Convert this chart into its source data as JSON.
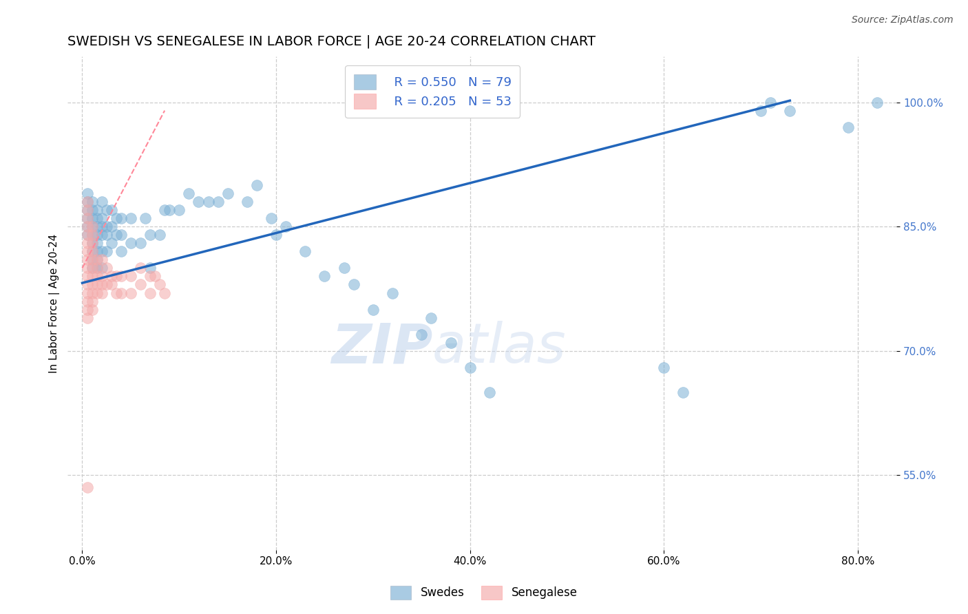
{
  "title": "SWEDISH VS SENEGALESE IN LABOR FORCE | AGE 20-24 CORRELATION CHART",
  "source": "Source: ZipAtlas.com",
  "ylabel": "In Labor Force | Age 20-24",
  "xlabel_ticks": [
    "0.0%",
    "20.0%",
    "40.0%",
    "60.0%",
    "80.0%"
  ],
  "xlabel_vals": [
    0.0,
    0.2,
    0.4,
    0.6,
    0.8
  ],
  "ylabel_ticks": [
    "55.0%",
    "70.0%",
    "85.0%",
    "100.0%"
  ],
  "ylabel_vals": [
    0.55,
    0.7,
    0.85,
    1.0
  ],
  "ylim": [
    0.46,
    1.055
  ],
  "xlim": [
    -0.015,
    0.84
  ],
  "blue_color": "#7BAFD4",
  "pink_color": "#F4AAAA",
  "legend_blue_R": "R = 0.550",
  "legend_blue_N": "N = 79",
  "legend_pink_R": "R = 0.205",
  "legend_pink_N": "N = 53",
  "watermark_zip": "ZIP",
  "watermark_atlas": "atlas",
  "grid_color": "#CCCCCC",
  "title_fontsize": 14,
  "axis_label_fontsize": 11,
  "tick_fontsize": 11,
  "source_fontsize": 10,
  "legend_fontsize": 13,
  "blue_scatter_x": [
    0.005,
    0.005,
    0.005,
    0.005,
    0.005,
    0.005,
    0.01,
    0.01,
    0.01,
    0.01,
    0.01,
    0.01,
    0.01,
    0.01,
    0.01,
    0.015,
    0.015,
    0.015,
    0.015,
    0.015,
    0.015,
    0.015,
    0.015,
    0.02,
    0.02,
    0.02,
    0.02,
    0.02,
    0.02,
    0.025,
    0.025,
    0.025,
    0.025,
    0.03,
    0.03,
    0.03,
    0.035,
    0.035,
    0.04,
    0.04,
    0.04,
    0.05,
    0.05,
    0.06,
    0.065,
    0.07,
    0.07,
    0.08,
    0.085,
    0.09,
    0.1,
    0.11,
    0.12,
    0.13,
    0.14,
    0.15,
    0.17,
    0.18,
    0.195,
    0.2,
    0.21,
    0.23,
    0.25,
    0.27,
    0.28,
    0.3,
    0.32,
    0.35,
    0.36,
    0.38,
    0.4,
    0.42,
    0.6,
    0.62,
    0.7,
    0.71,
    0.73,
    0.79,
    0.82
  ],
  "blue_scatter_y": [
    0.84,
    0.85,
    0.86,
    0.87,
    0.88,
    0.89,
    0.8,
    0.81,
    0.82,
    0.83,
    0.84,
    0.85,
    0.86,
    0.87,
    0.88,
    0.8,
    0.81,
    0.82,
    0.83,
    0.84,
    0.85,
    0.86,
    0.87,
    0.8,
    0.82,
    0.84,
    0.85,
    0.86,
    0.88,
    0.82,
    0.84,
    0.85,
    0.87,
    0.83,
    0.85,
    0.87,
    0.84,
    0.86,
    0.82,
    0.84,
    0.86,
    0.83,
    0.86,
    0.83,
    0.86,
    0.8,
    0.84,
    0.84,
    0.87,
    0.87,
    0.87,
    0.89,
    0.88,
    0.88,
    0.88,
    0.89,
    0.88,
    0.9,
    0.86,
    0.84,
    0.85,
    0.82,
    0.79,
    0.8,
    0.78,
    0.75,
    0.77,
    0.72,
    0.74,
    0.71,
    0.68,
    0.65,
    0.68,
    0.65,
    0.99,
    1.0,
    0.99,
    0.97,
    1.0
  ],
  "pink_scatter_x": [
    0.005,
    0.005,
    0.005,
    0.005,
    0.005,
    0.005,
    0.005,
    0.005,
    0.005,
    0.005,
    0.005,
    0.005,
    0.005,
    0.005,
    0.005,
    0.01,
    0.01,
    0.01,
    0.01,
    0.01,
    0.01,
    0.01,
    0.01,
    0.01,
    0.01,
    0.01,
    0.015,
    0.015,
    0.015,
    0.015,
    0.015,
    0.02,
    0.02,
    0.02,
    0.02,
    0.025,
    0.025,
    0.03,
    0.03,
    0.035,
    0.035,
    0.04,
    0.04,
    0.05,
    0.05,
    0.06,
    0.06,
    0.07,
    0.07,
    0.075,
    0.08,
    0.085,
    0.005
  ],
  "pink_scatter_y": [
    0.79,
    0.8,
    0.81,
    0.82,
    0.83,
    0.84,
    0.85,
    0.86,
    0.87,
    0.88,
    0.78,
    0.77,
    0.76,
    0.75,
    0.74,
    0.79,
    0.8,
    0.81,
    0.82,
    0.83,
    0.84,
    0.85,
    0.78,
    0.77,
    0.76,
    0.75,
    0.8,
    0.81,
    0.79,
    0.78,
    0.77,
    0.81,
    0.79,
    0.78,
    0.77,
    0.8,
    0.78,
    0.79,
    0.78,
    0.79,
    0.77,
    0.79,
    0.77,
    0.79,
    0.77,
    0.8,
    0.78,
    0.79,
    0.77,
    0.79,
    0.78,
    0.77,
    0.535
  ],
  "blue_line_x": [
    0.0,
    0.73
  ],
  "blue_line_y": [
    0.782,
    1.002
  ],
  "pink_line_x": [
    0.0,
    0.085
  ],
  "pink_line_y": [
    0.8,
    0.99
  ]
}
